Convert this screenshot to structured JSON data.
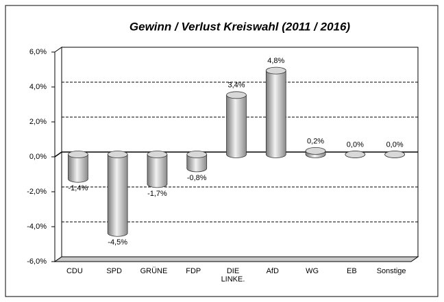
{
  "chart_data": {
    "type": "bar",
    "title": "Gewinn / Verlust Kreiswahl (2011 / 2016)",
    "categories": [
      "CDU",
      "SPD",
      "GRÜNE",
      "FDP",
      "DIE LINKE.",
      "AfD",
      "WG",
      "EB",
      "Sonstige"
    ],
    "values": [
      -1.4,
      -4.5,
      -1.7,
      -0.8,
      3.4,
      4.8,
      0.2,
      0.0,
      0.0
    ],
    "value_labels": [
      "-1,4%",
      "-4,5%",
      "-1,7%",
      "-0,8%",
      "3,4%",
      "4,8%",
      "0,2%",
      "0,0%",
      "0,0%"
    ],
    "color": "#b0b0b0",
    "ylim": [
      -6,
      6
    ],
    "yticks": [
      {
        "value": -6,
        "label": "-6,0%"
      },
      {
        "value": -4,
        "label": "-4,0%"
      },
      {
        "value": -2,
        "label": "-2,0%"
      },
      {
        "value": 0,
        "label": "0,0%"
      },
      {
        "value": 2,
        "label": "2,0%"
      },
      {
        "value": 4,
        "label": "4,0%"
      },
      {
        "value": 6,
        "label": "6,0%"
      }
    ],
    "grid": true
  }
}
